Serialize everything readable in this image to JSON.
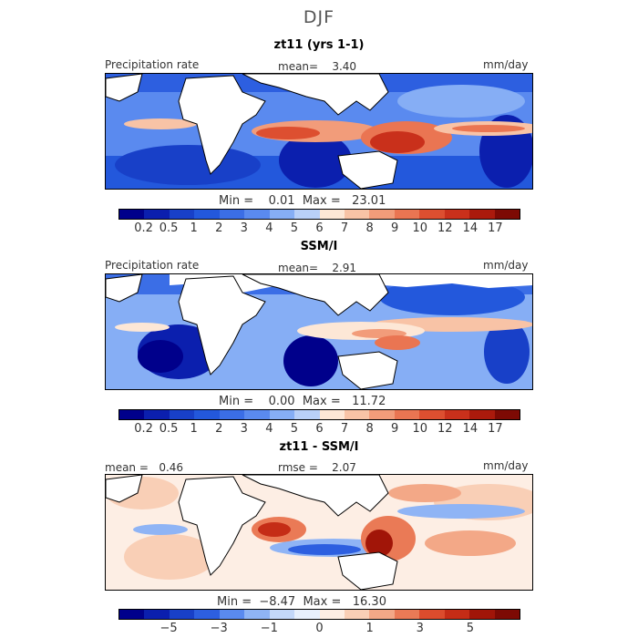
{
  "season": "DJF",
  "panels": [
    {
      "title": "zt11 (yrs 1-1)",
      "left_label": "Precipitation rate",
      "center_label": "mean=    3.40",
      "right_label": "mm/day",
      "minmax": "Min =    0.01  Max =   23.01"
    },
    {
      "title": "SSM/I",
      "left_label": "Precipitation rate",
      "center_label": "mean=    2.91",
      "right_label": "mm/day",
      "minmax": "Min =    0.00  Max =   11.72"
    },
    {
      "title": "zt11 - SSM/I",
      "left_label": "mean =   0.46",
      "center_label": "rmse =    2.07",
      "right_label": "mm/day",
      "minmax": "Min =  −8.47  Max =   16.30"
    }
  ],
  "precip_colorbar": {
    "colors": [
      "#00008b",
      "#0b1fae",
      "#1840c8",
      "#2358dc",
      "#3b6ee6",
      "#5a8aef",
      "#86aef5",
      "#b9d0f8",
      "#fde7d6",
      "#f8c3a6",
      "#f29c7a",
      "#ea7552",
      "#dd4f30",
      "#c9301b",
      "#ab1a0c",
      "#7d0a04"
    ],
    "tick_labels": [
      "0.2",
      "0.5",
      "1",
      "2",
      "3",
      "4",
      "5",
      "6",
      "7",
      "8",
      "9",
      "10",
      "12",
      "14",
      "17"
    ]
  },
  "diff_colorbar": {
    "colors": [
      "#00008b",
      "#0b1fae",
      "#1840c8",
      "#2d5fe0",
      "#5a8aef",
      "#8fb4f5",
      "#c4d8f9",
      "#e8f0fc",
      "#fdeee4",
      "#f9cfb6",
      "#f3a887",
      "#ea7a56",
      "#dc4c2d",
      "#c52c16",
      "#a11508",
      "#7d0a04"
    ],
    "tick_labels": [
      "−5",
      "−3",
      "−1",
      "0",
      "1",
      "3",
      "5"
    ],
    "tick_positions": [
      0.125,
      0.25,
      0.375,
      0.5,
      0.625,
      0.75,
      0.875
    ]
  }
}
